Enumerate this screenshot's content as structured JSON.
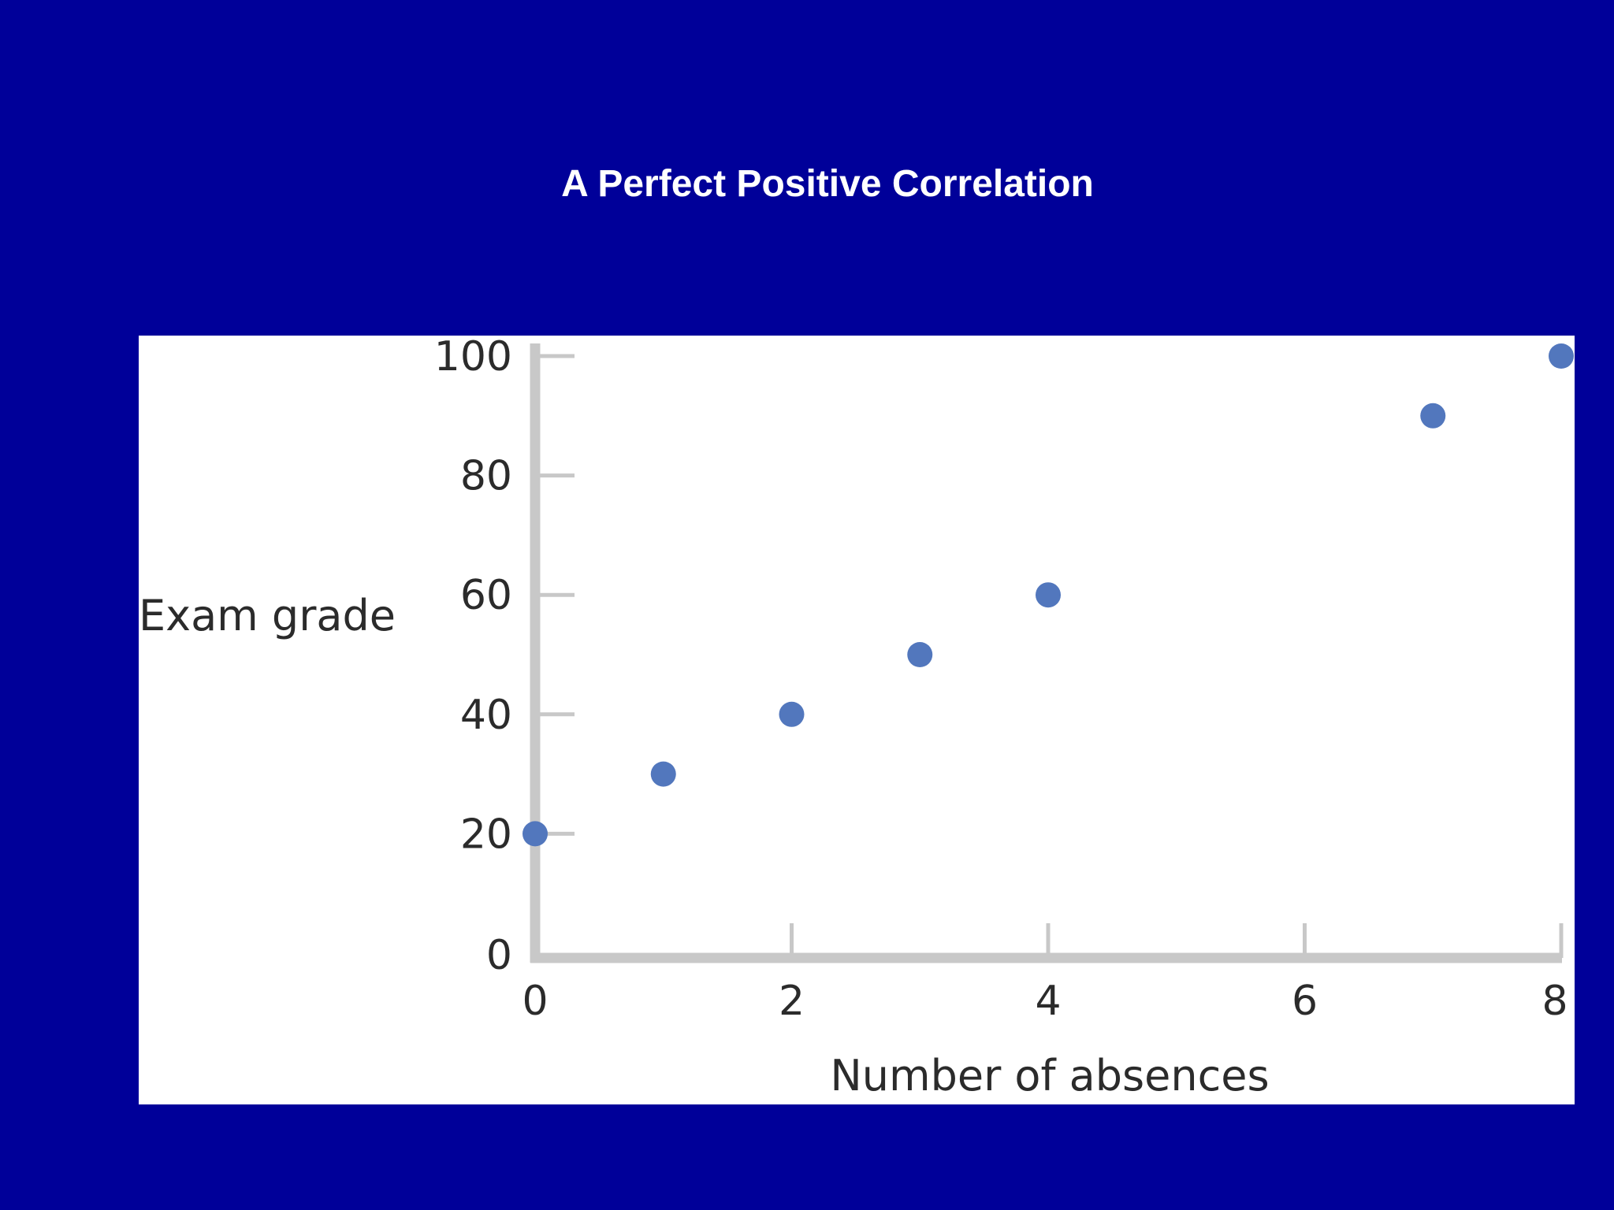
{
  "title": "A Perfect Positive Correlation",
  "colors": {
    "background": "#000099",
    "panel": "#ffffff",
    "axis": "#c8c8c8",
    "point": "#5277bd",
    "text": "#2b2b2b",
    "title": "#ffffff"
  },
  "chart_data": {
    "type": "scatter",
    "title": "A Perfect Positive Correlation",
    "xlabel": "Number of absences",
    "ylabel": "Exam grade",
    "xlim": [
      0,
      8
    ],
    "ylim": [
      0,
      100
    ],
    "xticks": [
      "0",
      "2",
      "4",
      "6",
      "8"
    ],
    "yticks": [
      "0",
      "20",
      "40",
      "60",
      "80",
      "100"
    ],
    "grid": false,
    "legend": "none",
    "points": [
      {
        "x": 0,
        "y": 20
      },
      {
        "x": 1,
        "y": 30
      },
      {
        "x": 2,
        "y": 40
      },
      {
        "x": 3,
        "y": 50
      },
      {
        "x": 4,
        "y": 60
      },
      {
        "x": 7,
        "y": 90
      },
      {
        "x": 8,
        "y": 100
      }
    ]
  }
}
